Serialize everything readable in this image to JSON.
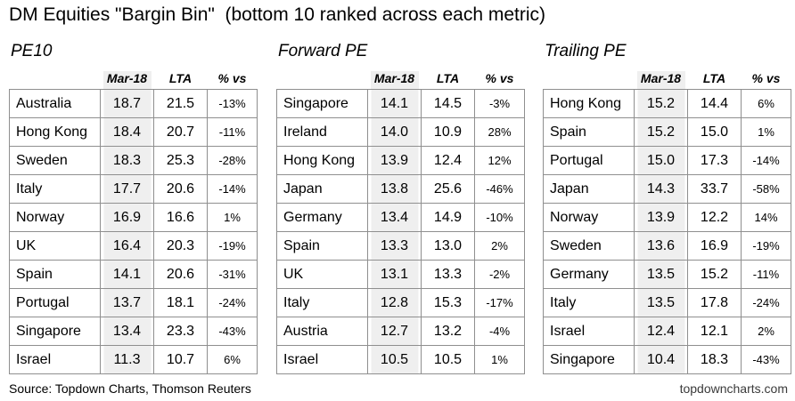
{
  "title": "DM Equities \"Bargin Bin\"  (bottom 10 ranked across each metric)",
  "footer": {
    "source": "Source: Topdown Charts, Thomson Reuters",
    "website": "topdowncharts.com"
  },
  "colors": {
    "shade": "#efefef",
    "border": "#8f8f8f"
  },
  "chart_data": [
    {
      "type": "table",
      "title": "PE10",
      "columns": [
        "",
        "Mar-18",
        "LTA",
        "% vs"
      ],
      "rows": [
        [
          "Australia",
          "18.7",
          "21.5",
          "-13%"
        ],
        [
          "Hong Kong",
          "18.4",
          "20.7",
          "-11%"
        ],
        [
          "Sweden",
          "18.3",
          "25.3",
          "-28%"
        ],
        [
          "Italy",
          "17.7",
          "20.6",
          "-14%"
        ],
        [
          "Norway",
          "16.9",
          "16.6",
          "1%"
        ],
        [
          "UK",
          "16.4",
          "20.3",
          "-19%"
        ],
        [
          "Spain",
          "14.1",
          "20.6",
          "-31%"
        ],
        [
          "Portugal",
          "13.7",
          "18.1",
          "-24%"
        ],
        [
          "Singapore",
          "13.4",
          "23.3",
          "-43%"
        ],
        [
          "Israel",
          "11.3",
          "10.7",
          "6%"
        ]
      ]
    },
    {
      "type": "table",
      "title": "Forward PE",
      "columns": [
        "",
        "Mar-18",
        "LTA",
        "% vs"
      ],
      "rows": [
        [
          "Singapore",
          "14.1",
          "14.5",
          "-3%"
        ],
        [
          "Ireland",
          "14.0",
          "10.9",
          "28%"
        ],
        [
          "Hong Kong",
          "13.9",
          "12.4",
          "12%"
        ],
        [
          "Japan",
          "13.8",
          "25.6",
          "-46%"
        ],
        [
          "Germany",
          "13.4",
          "14.9",
          "-10%"
        ],
        [
          "Spain",
          "13.3",
          "13.0",
          "2%"
        ],
        [
          "UK",
          "13.1",
          "13.3",
          "-2%"
        ],
        [
          "Italy",
          "12.8",
          "15.3",
          "-17%"
        ],
        [
          "Austria",
          "12.7",
          "13.2",
          "-4%"
        ],
        [
          "Israel",
          "10.5",
          "10.5",
          "1%"
        ]
      ]
    },
    {
      "type": "table",
      "title": "Trailing PE",
      "columns": [
        "",
        "Mar-18",
        "LTA",
        "% vs"
      ],
      "rows": [
        [
          "Hong Kong",
          "15.2",
          "14.4",
          "6%"
        ],
        [
          "Spain",
          "15.2",
          "15.0",
          "1%"
        ],
        [
          "Portugal",
          "15.0",
          "17.3",
          "-14%"
        ],
        [
          "Japan",
          "14.3",
          "33.7",
          "-58%"
        ],
        [
          "Norway",
          "13.9",
          "12.2",
          "14%"
        ],
        [
          "Sweden",
          "13.6",
          "16.9",
          "-19%"
        ],
        [
          "Germany",
          "13.5",
          "15.2",
          "-11%"
        ],
        [
          "Italy",
          "13.5",
          "17.8",
          "-24%"
        ],
        [
          "Israel",
          "12.4",
          "12.1",
          "2%"
        ],
        [
          "Singapore",
          "10.4",
          "18.3",
          "-43%"
        ]
      ]
    }
  ]
}
